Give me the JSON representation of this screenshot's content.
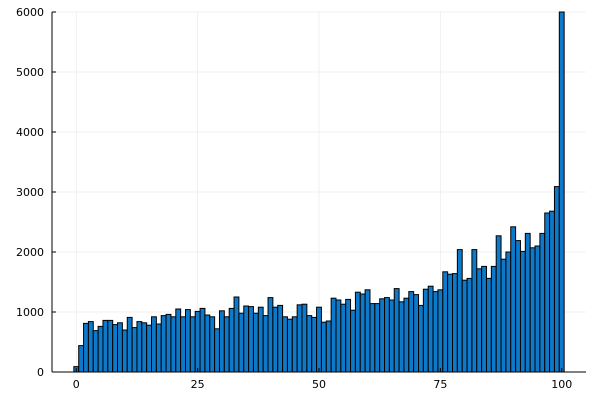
{
  "chart_data": {
    "type": "bar",
    "title": "",
    "xlabel": "",
    "ylabel": "",
    "xlim": [
      -5,
      105
    ],
    "ylim": [
      0,
      6000
    ],
    "x_ticks": [
      0,
      25,
      50,
      75,
      100
    ],
    "x_tick_labels": [
      "0",
      "25",
      "50",
      "75",
      "100"
    ],
    "y_ticks": [
      0,
      1000,
      2000,
      3000,
      4000,
      5000,
      6000
    ],
    "y_tick_labels": [
      "0",
      "1000",
      "2000",
      "3000",
      "4000",
      "5000",
      "6000"
    ],
    "grid": true,
    "legend": "none",
    "bar_color": "#0e79c9",
    "bin_width": 1,
    "x": [
      0,
      1,
      2,
      3,
      4,
      5,
      6,
      7,
      8,
      9,
      10,
      11,
      12,
      13,
      14,
      15,
      16,
      17,
      18,
      19,
      20,
      21,
      22,
      23,
      24,
      25,
      26,
      27,
      28,
      29,
      30,
      31,
      32,
      33,
      34,
      35,
      36,
      37,
      38,
      39,
      40,
      41,
      42,
      43,
      44,
      45,
      46,
      47,
      48,
      49,
      50,
      51,
      52,
      53,
      54,
      55,
      56,
      57,
      58,
      59,
      60,
      61,
      62,
      63,
      64,
      65,
      66,
      67,
      68,
      69,
      70,
      71,
      72,
      73,
      74,
      75,
      76,
      77,
      78,
      79,
      80,
      81,
      82,
      83,
      84,
      85,
      86,
      87,
      88,
      89,
      90,
      91,
      92,
      93,
      94,
      95,
      96,
      97,
      98,
      99,
      100
    ],
    "values": [
      90,
      440,
      810,
      840,
      690,
      760,
      860,
      860,
      790,
      820,
      700,
      910,
      740,
      840,
      820,
      780,
      920,
      800,
      940,
      960,
      920,
      1050,
      920,
      1040,
      920,
      1010,
      1060,
      950,
      920,
      720,
      1020,
      920,
      1060,
      1250,
      980,
      1100,
      1090,
      980,
      1080,
      940,
      1240,
      1080,
      1110,
      920,
      880,
      920,
      1120,
      1130,
      940,
      910,
      1080,
      830,
      850,
      1230,
      1200,
      1130,
      1210,
      1030,
      1330,
      1300,
      1370,
      1140,
      1140,
      1220,
      1240,
      1200,
      1390,
      1170,
      1230,
      1340,
      1290,
      1110,
      1380,
      1430,
      1340,
      1370,
      1670,
      1630,
      1640,
      2040,
      1530,
      1560,
      2040,
      1720,
      1760,
      1560,
      1760,
      2270,
      1880,
      2000,
      2420,
      2190,
      2010,
      2310,
      2070,
      2100,
      2310,
      2650,
      2680,
      3090,
      6000
    ]
  }
}
